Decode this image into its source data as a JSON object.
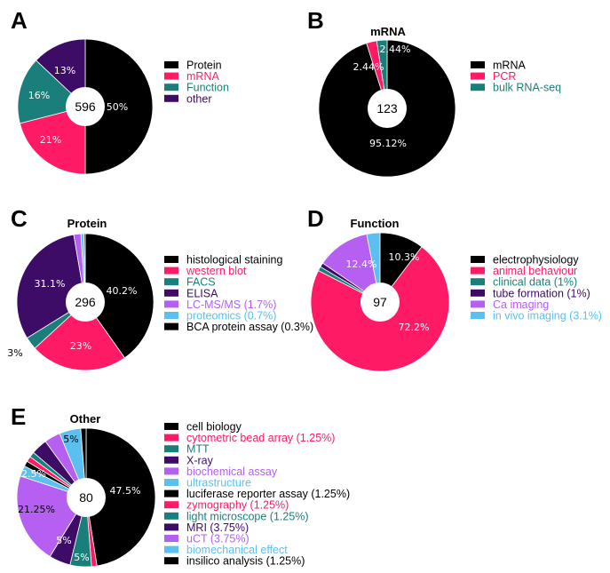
{
  "panels": [
    {
      "letter": "A",
      "title": "",
      "total": "596",
      "legend": [
        {
          "label": "Protein",
          "color": "#000000"
        },
        {
          "label": "mRNA",
          "color": "#ff1a66"
        },
        {
          "label": "Function",
          "color": "#1a7f7a"
        },
        {
          "label": "other",
          "color": "#3d0c66"
        }
      ]
    },
    {
      "letter": "B",
      "title": "mRNA",
      "total": "123",
      "legend": [
        {
          "label": "mRNA",
          "color": "#000000"
        },
        {
          "label": "PCR",
          "color": "#ff1a66"
        },
        {
          "label": "bulk RNA-seq",
          "color": "#1a7f7a"
        }
      ]
    },
    {
      "letter": "C",
      "title": "Protein",
      "total": "296",
      "legend": [
        {
          "label": "histological staining",
          "color": "#000000"
        },
        {
          "label": "western blot",
          "color": "#ff1a66"
        },
        {
          "label": "FACS",
          "color": "#1a7f7a"
        },
        {
          "label": "ELISA",
          "color": "#3d0c66"
        },
        {
          "label": "LC-MS/MS (1.7%)",
          "color": "#b560f0"
        },
        {
          "label": "proteomics (0.7%)",
          "color": "#5bc0f0"
        },
        {
          "label": "BCA protein assay (0.3%)",
          "color": "#000000"
        }
      ]
    },
    {
      "letter": "D",
      "title": "Function",
      "total": "97",
      "legend": [
        {
          "label": "electrophysiology",
          "color": "#000000"
        },
        {
          "label": "animal behaviour",
          "color": "#ff1a66"
        },
        {
          "label": "clinical data (1%)",
          "color": "#1a7f7a"
        },
        {
          "label": "tube formation (1%)",
          "color": "#3d0c66"
        },
        {
          "label": "Ca imaging",
          "color": "#b560f0"
        },
        {
          "label": "in vivo imaging (3.1%)",
          "color": "#5bc0f0"
        }
      ]
    },
    {
      "letter": "E",
      "title": "Other",
      "total": "80",
      "legend": [
        {
          "label": "cell biology",
          "color": "#000000"
        },
        {
          "label": "cytometric bead array (1.25%)",
          "color": "#ff1a66"
        },
        {
          "label": "MTT",
          "color": "#1a7f7a"
        },
        {
          "label": "X-ray",
          "color": "#3d0c66"
        },
        {
          "label": "biochemical assay",
          "color": "#b560f0"
        },
        {
          "label": "ultrastructure",
          "color": "#5bc0f0"
        },
        {
          "label": "luciferase reporter assay (1.25%)",
          "color": "#000000"
        },
        {
          "label": "zymography (1.25%)",
          "color": "#ff1a66"
        },
        {
          "label": "light microscope (1.25%)",
          "color": "#1a7f7a"
        },
        {
          "label": "MRI (3.75%)",
          "color": "#3d0c66"
        },
        {
          "label": "uCT (3.75%)",
          "color": "#b560f0"
        },
        {
          "label": "biomechanical effect",
          "color": "#5bc0f0"
        },
        {
          "label": "insilico analysis (1.25%)",
          "color": "#000000"
        }
      ]
    }
  ],
  "chart_data": [
    {
      "type": "pie",
      "title": "",
      "total": 596,
      "slices": [
        {
          "name": "Protein",
          "value": 50,
          "label": "50%",
          "color": "#000000",
          "label_color": "#ffffff"
        },
        {
          "name": "mRNA",
          "value": 21,
          "label": "21%",
          "color": "#ff1a66",
          "label_color": "#ffffff"
        },
        {
          "name": "Function",
          "value": 16,
          "label": "16%",
          "color": "#1a7f7a",
          "label_color": "#ffffff"
        },
        {
          "name": "other",
          "value": 13,
          "label": "13%",
          "color": "#3d0c66",
          "label_color": "#ffffff"
        }
      ]
    },
    {
      "type": "pie",
      "title": "mRNA",
      "total": 123,
      "slices": [
        {
          "name": "mRNA",
          "value": 95.12,
          "label": "95.12%",
          "color": "#000000",
          "label_color": "#ffffff"
        },
        {
          "name": "PCR",
          "value": 2.44,
          "label": "2.44%",
          "color": "#ff1a66",
          "label_color": "#ffffff"
        },
        {
          "name": "bulk RNA-seq",
          "value": 2.44,
          "label": "2.44%",
          "color": "#1a7f7a",
          "label_color": "#ffffff"
        }
      ]
    },
    {
      "type": "pie",
      "title": "Protein",
      "total": 296,
      "slices": [
        {
          "name": "histological staining",
          "value": 40.2,
          "label": "40.2%",
          "color": "#000000",
          "label_color": "#ffffff"
        },
        {
          "name": "western blot",
          "value": 23,
          "label": "23%",
          "color": "#ff1a66",
          "label_color": "#ffffff"
        },
        {
          "name": "FACS",
          "value": 3,
          "label": "3%",
          "color": "#1a7f7a",
          "label_color": "#000000"
        },
        {
          "name": "ELISA",
          "value": 31.1,
          "label": "31.1%",
          "color": "#3d0c66",
          "label_color": "#ffffff"
        },
        {
          "name": "LC-MS/MS",
          "value": 1.7,
          "label": "",
          "color": "#b560f0",
          "label_color": "#ffffff"
        },
        {
          "name": "proteomics",
          "value": 0.7,
          "label": "",
          "color": "#5bc0f0",
          "label_color": "#ffffff"
        },
        {
          "name": "BCA protein assay",
          "value": 0.3,
          "label": "",
          "color": "#000000",
          "label_color": "#ffffff"
        }
      ]
    },
    {
      "type": "pie",
      "title": "Function",
      "total": 97,
      "slices": [
        {
          "name": "electrophysiology",
          "value": 10.3,
          "label": "10.3%",
          "color": "#000000",
          "label_color": "#ffffff"
        },
        {
          "name": "animal behaviour",
          "value": 72.2,
          "label": "72.2%",
          "color": "#ff1a66",
          "label_color": "#ffffff"
        },
        {
          "name": "clinical data",
          "value": 1,
          "label": "",
          "color": "#1a7f7a",
          "label_color": "#ffffff"
        },
        {
          "name": "tube formation",
          "value": 1,
          "label": "",
          "color": "#3d0c66",
          "label_color": "#ffffff"
        },
        {
          "name": "Ca imaging",
          "value": 12.4,
          "label": "12.4%",
          "color": "#b560f0",
          "label_color": "#ffffff"
        },
        {
          "name": "in vivo imaging",
          "value": 3.1,
          "label": "",
          "color": "#5bc0f0",
          "label_color": "#ffffff"
        }
      ]
    },
    {
      "type": "pie",
      "title": "Other",
      "total": 80,
      "slices": [
        {
          "name": "cell biology",
          "value": 47.5,
          "label": "47.5%",
          "color": "#000000",
          "label_color": "#ffffff"
        },
        {
          "name": "cytometric bead array",
          "value": 1.25,
          "label": "",
          "color": "#ff1a66",
          "label_color": "#ffffff"
        },
        {
          "name": "MTT",
          "value": 5,
          "label": "5%",
          "color": "#1a7f7a",
          "label_color": "#ffffff"
        },
        {
          "name": "X-ray",
          "value": 5,
          "label": "5%",
          "color": "#3d0c66",
          "label_color": "#ffffff"
        },
        {
          "name": "biochemical assay",
          "value": 21.25,
          "label": "21.25%",
          "color": "#b560f0",
          "label_color": "#000000"
        },
        {
          "name": "ultrastructure",
          "value": 2.5,
          "label": "2.5%",
          "color": "#5bc0f0",
          "label_color": "#ffffff"
        },
        {
          "name": "luciferase reporter assay",
          "value": 1.25,
          "label": "",
          "color": "#000000",
          "label_color": "#ffffff"
        },
        {
          "name": "zymography",
          "value": 1.25,
          "label": "",
          "color": "#ff1a66",
          "label_color": "#ffffff"
        },
        {
          "name": "light microscope",
          "value": 1.25,
          "label": "",
          "color": "#1a7f7a",
          "label_color": "#ffffff"
        },
        {
          "name": "MRI",
          "value": 3.75,
          "label": "",
          "color": "#3d0c66",
          "label_color": "#ffffff"
        },
        {
          "name": "uCT",
          "value": 3.75,
          "label": "",
          "color": "#b560f0",
          "label_color": "#ffffff"
        },
        {
          "name": "biomechanical effect",
          "value": 5,
          "label": "5%",
          "color": "#5bc0f0",
          "label_color": "#000000"
        },
        {
          "name": "insilico analysis",
          "value": 1.25,
          "label": "",
          "color": "#000000",
          "label_color": "#ffffff"
        }
      ]
    }
  ]
}
